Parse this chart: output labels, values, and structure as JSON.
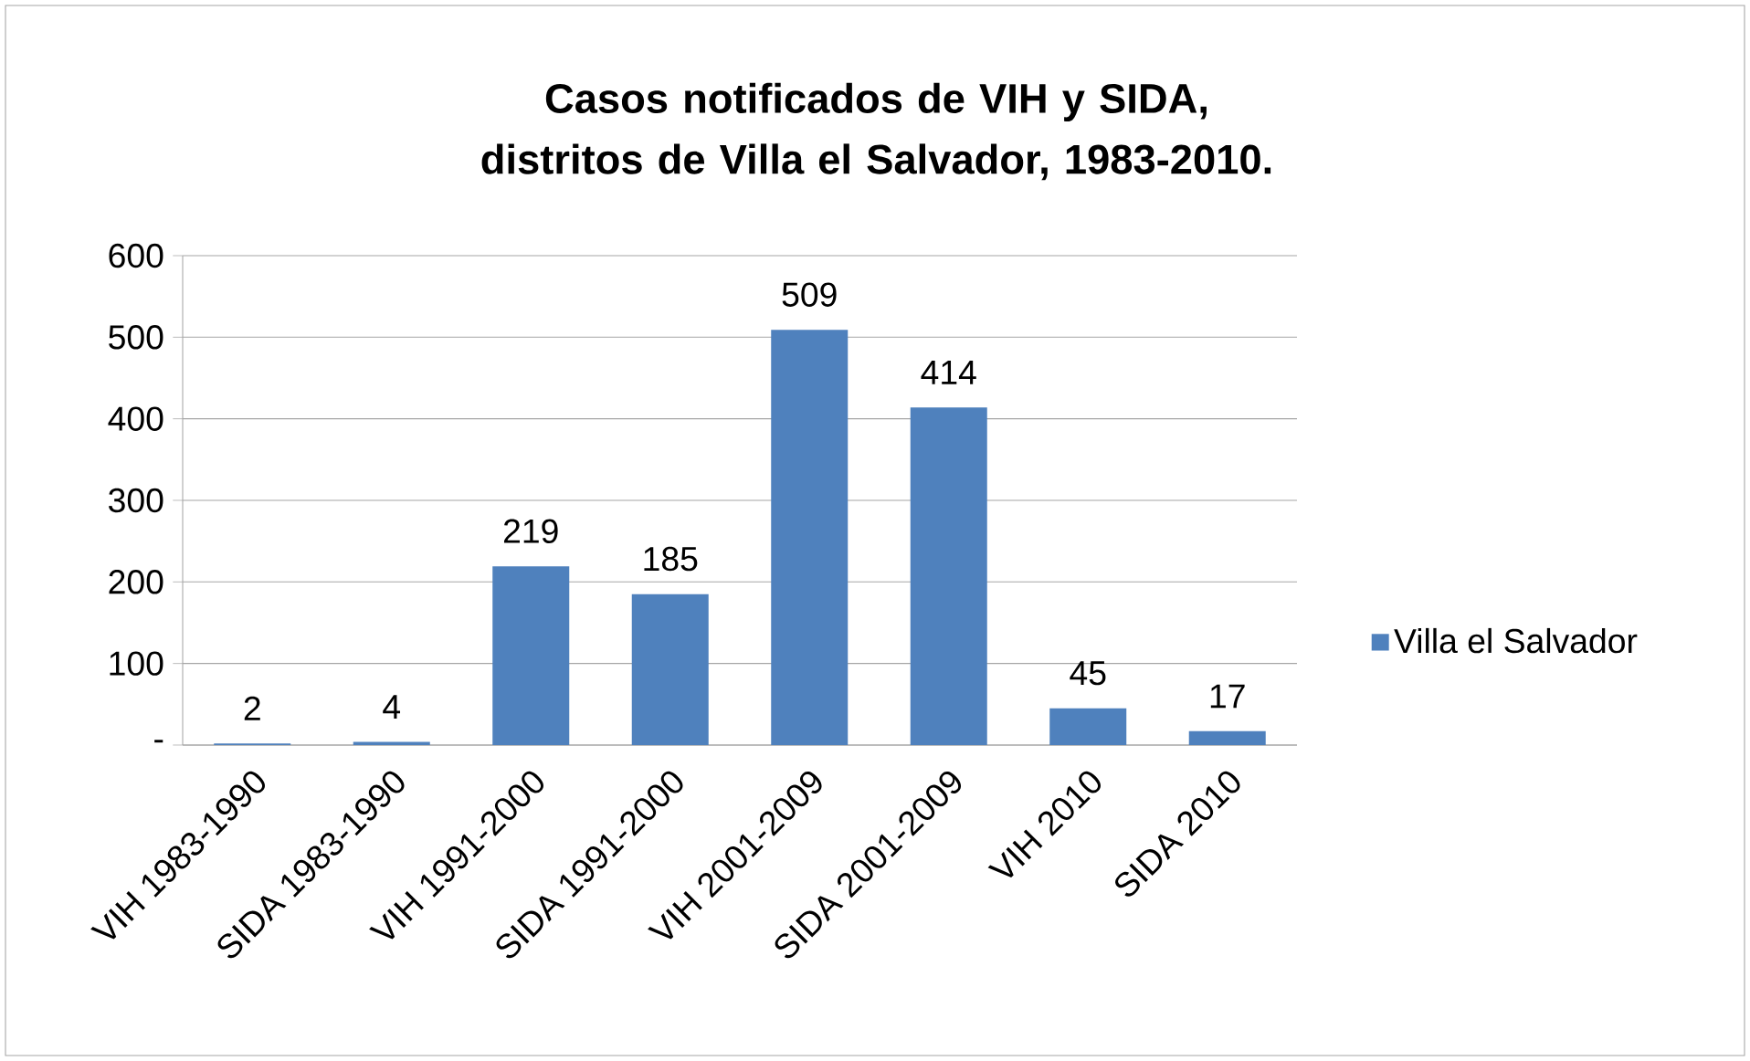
{
  "chart_data": {
    "type": "bar",
    "title": "Casos notificados de VIH y SIDA, distritos de Villa el Salvador, 1983-2010.",
    "categories": [
      "VIH 1983-1990",
      "SIDA 1983-1990",
      "VIH 1991-2000",
      "SIDA 1991-2000",
      "VIH 2001-2009",
      "SIDA 2001-2009",
      "VIH 2010",
      "SIDA 2010"
    ],
    "series": [
      {
        "name": "Villa el Salvador",
        "color": "#4f81bd",
        "values": [
          2,
          4,
          219,
          185,
          509,
          414,
          45,
          17
        ]
      }
    ],
    "ylim": [
      0,
      600
    ],
    "yticks": [
      {
        "value": 0,
        "label": "-"
      },
      100,
      200,
      300,
      400,
      500,
      600
    ],
    "grid": "y",
    "legend": "right",
    "data_labels": true
  }
}
